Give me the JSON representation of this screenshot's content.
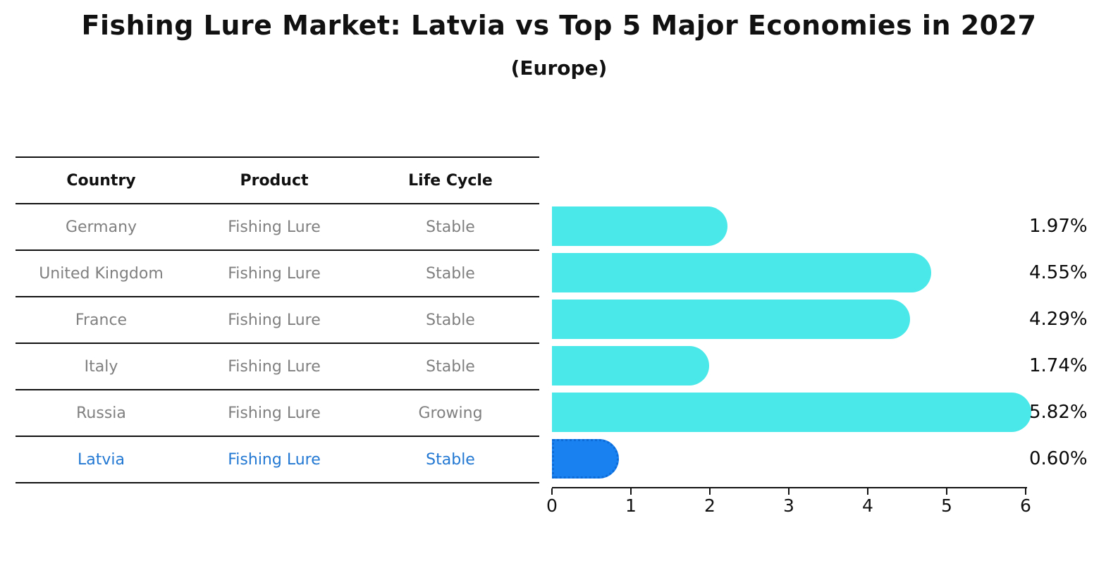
{
  "title": "Fishing Lure Market: Latvia vs Top 5 Major Economies in 2027",
  "subtitle": "(Europe)",
  "table": {
    "headers": [
      "Country",
      "Product",
      "Life Cycle"
    ],
    "rows": [
      {
        "country": "Germany",
        "product": "Fishing Lure",
        "life_cycle": "Stable",
        "highlight": false
      },
      {
        "country": "United Kingdom",
        "product": "Fishing Lure",
        "life_cycle": "Stable",
        "highlight": false
      },
      {
        "country": "France",
        "product": "Fishing Lure",
        "life_cycle": "Stable",
        "highlight": false
      },
      {
        "country": "Italy",
        "product": "Fishing Lure",
        "life_cycle": "Stable",
        "highlight": false
      },
      {
        "country": "Russia",
        "product": "Fishing Lure",
        "life_cycle": "Growing",
        "highlight": false
      },
      {
        "country": "Latvia",
        "product": "Fishing Lure",
        "life_cycle": "Stable",
        "highlight": true
      }
    ]
  },
  "chart_data": {
    "type": "bar",
    "orientation": "horizontal",
    "title": "Fishing Lure Market: Latvia vs Top 5 Major Economies in 2027 (Europe)",
    "categories": [
      "Germany",
      "United Kingdom",
      "France",
      "Italy",
      "Russia",
      "Latvia"
    ],
    "values": [
      1.97,
      4.55,
      4.29,
      1.74,
      5.82,
      0.6
    ],
    "value_labels": [
      "1.97%",
      "4.55%",
      "4.29%",
      "1.74%",
      "5.82%",
      "0.60%"
    ],
    "highlight_category": "Latvia",
    "xlim": [
      0,
      6
    ],
    "x_ticks": [
      "0",
      "1",
      "2",
      "3",
      "4",
      "5",
      "6"
    ],
    "grid": false,
    "legend": "none",
    "colors": {
      "bar_default": "#4AE8E8",
      "bar_highlight": "#1982F0",
      "bar_highlight_border": "#0D6BD8",
      "table_text": "#808080",
      "table_header_text": "#111111",
      "highlight_text": "#2278D2",
      "axis": "#111111",
      "background": "#ffffff"
    }
  }
}
